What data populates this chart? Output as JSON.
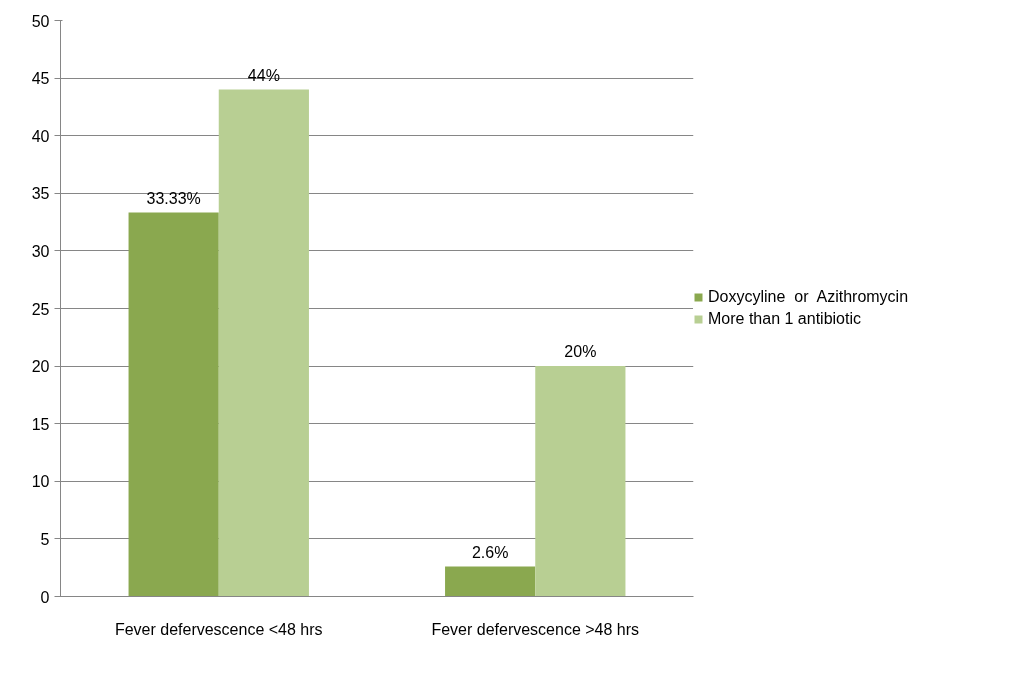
{
  "chart_data": {
    "type": "bar",
    "categories": [
      "Fever defervescence <48 hrs",
      "Fever defervescence >48 hrs"
    ],
    "series": [
      {
        "name": "Doxycyline  or  Azithromycin",
        "color": "#8aa84f",
        "values": [
          33.33,
          2.6
        ],
        "value_labels": [
          "33.33%",
          "2.6%"
        ]
      },
      {
        "name": "More than 1 antibiotic",
        "color": "#b8cf93",
        "values": [
          44,
          20
        ],
        "value_labels": [
          "44%",
          "20%"
        ]
      }
    ],
    "ylim": [
      0,
      50
    ],
    "yticks": [
      0,
      5,
      10,
      15,
      20,
      25,
      30,
      35,
      40,
      45,
      50
    ],
    "grid": "y",
    "legend": "right"
  }
}
